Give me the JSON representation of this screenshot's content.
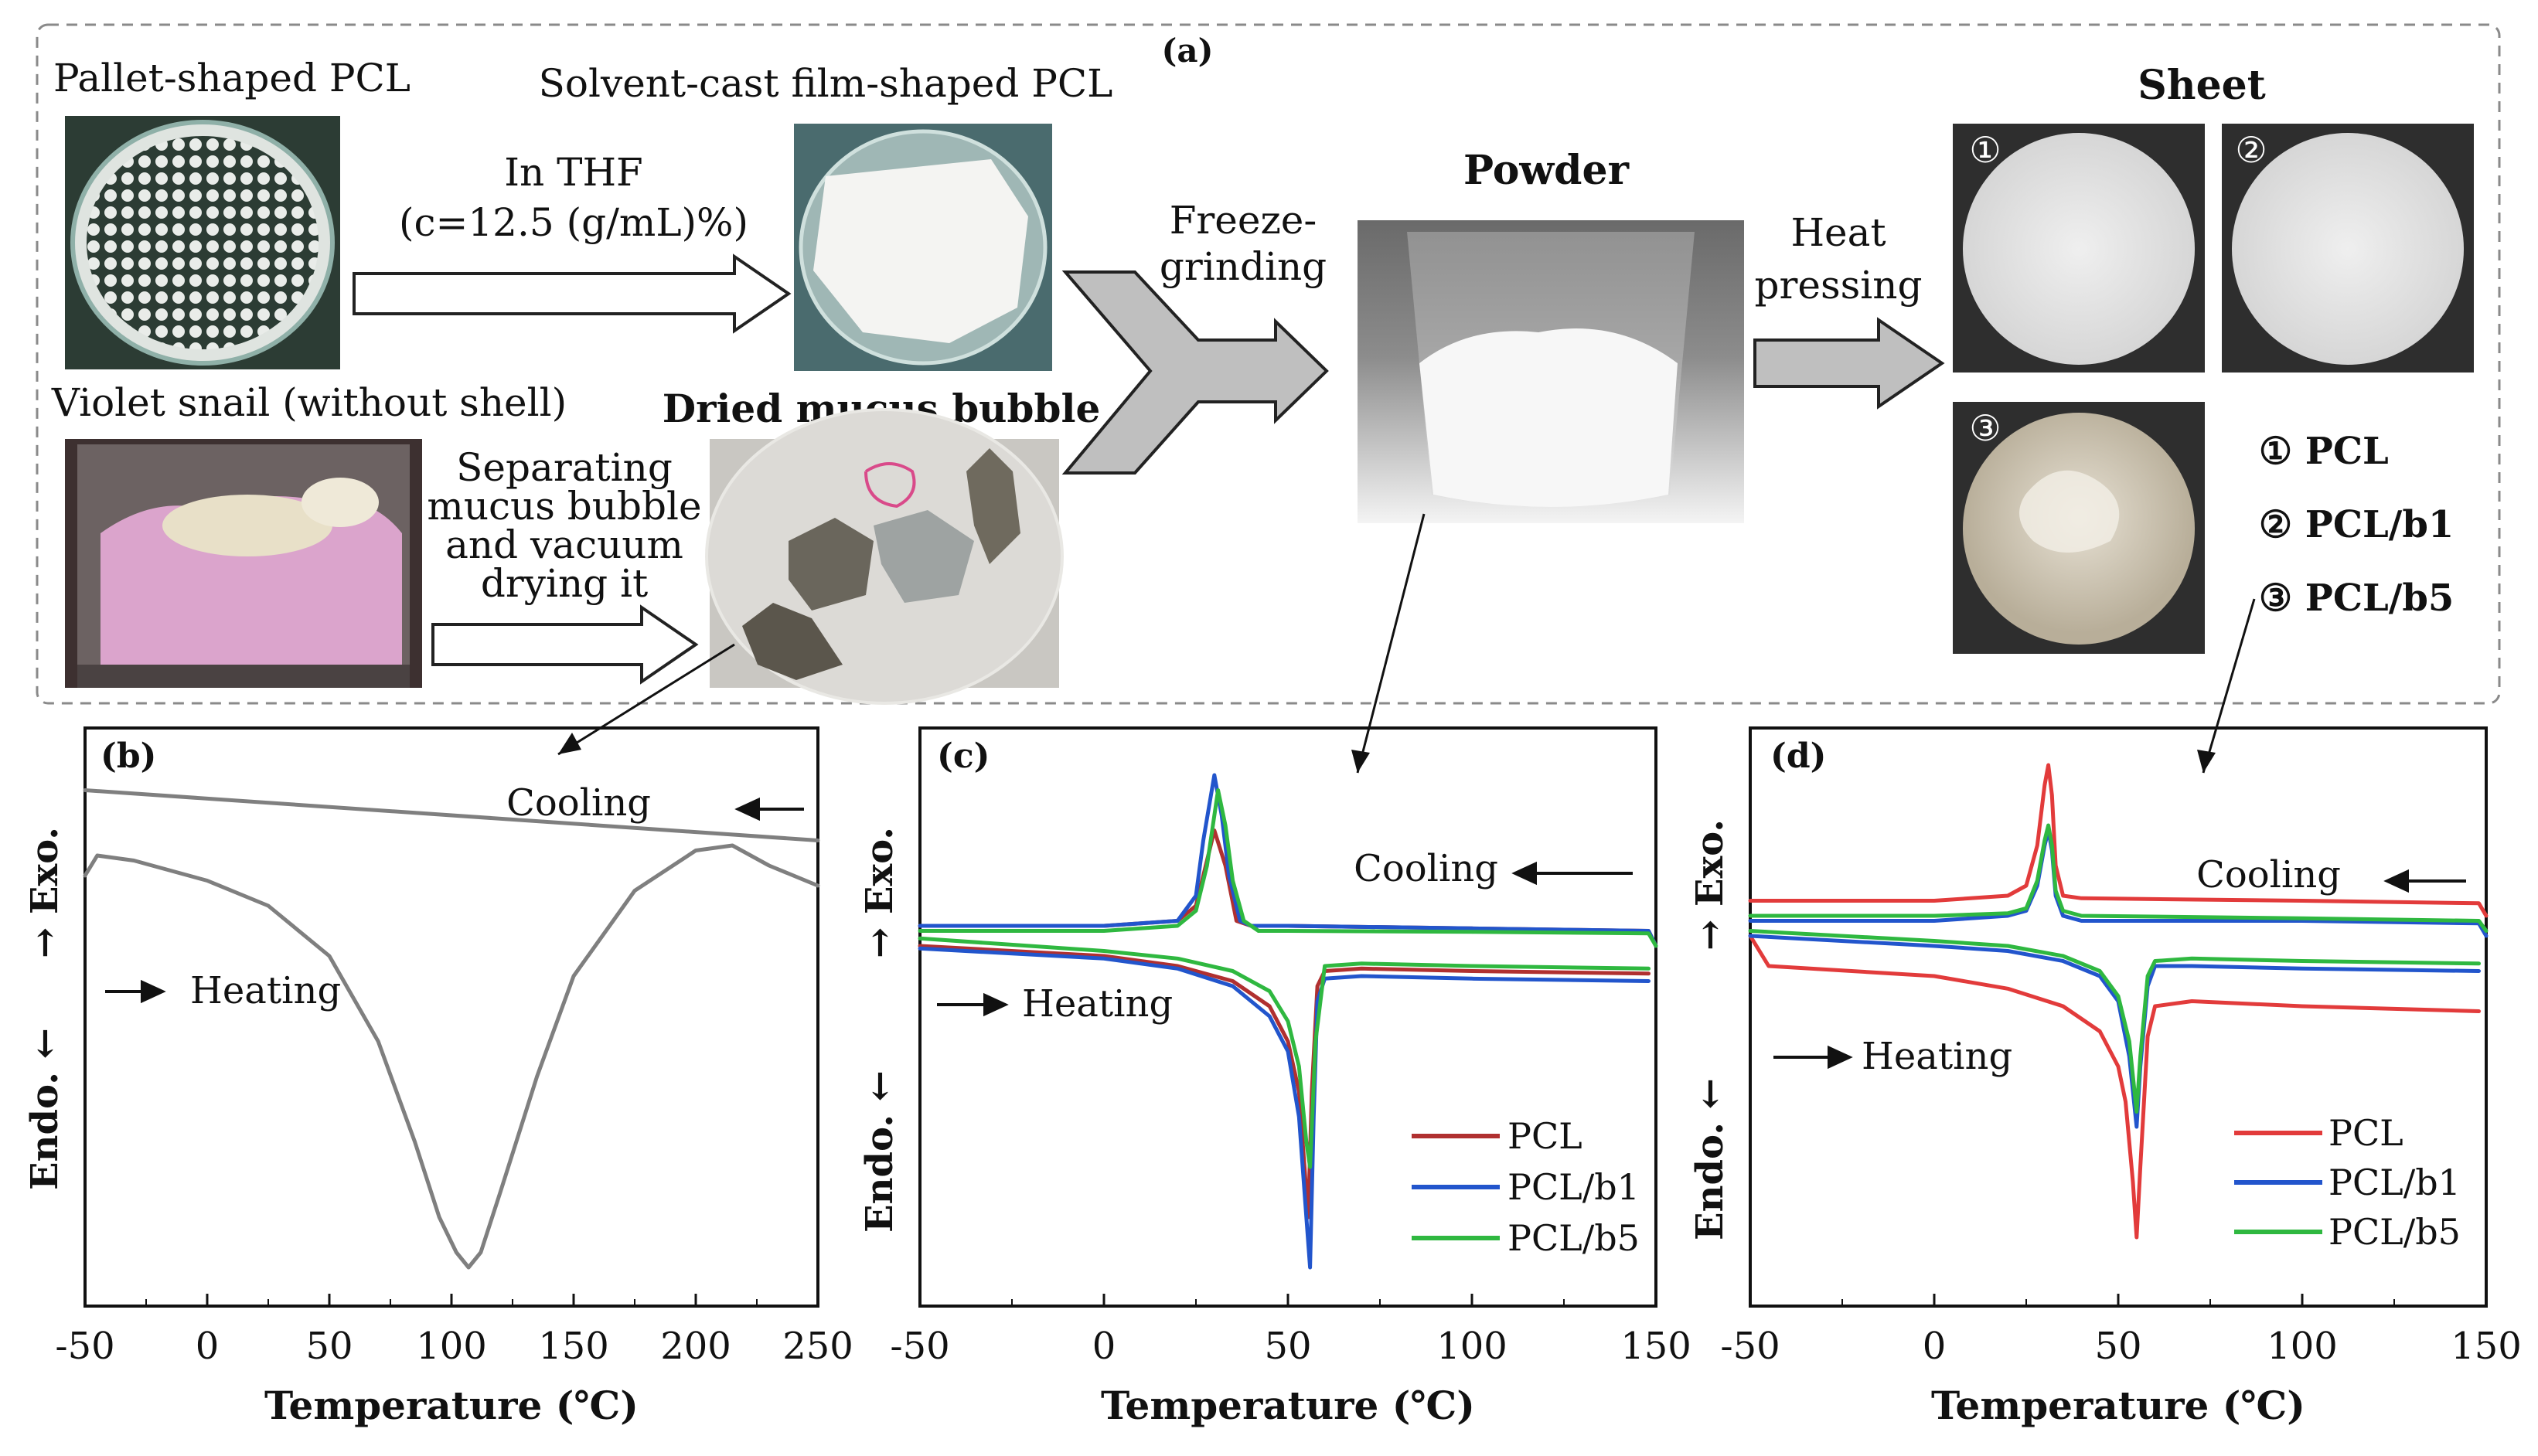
{
  "panel_a": {
    "label": "(a)",
    "pellet_label": "Pallet-shaped PCL",
    "film_label": "Solvent-cast film-shaped PCL",
    "thf_line1": "In THF",
    "thf_line2": "(c=12.5 (g/mL)%)",
    "snail_label": "Violet snail (without shell)",
    "mucus_label": "Dried mucus bubble",
    "separating_line1": "Separating",
    "separating_line2": "mucus bubble",
    "separating_line3": "and vacuum",
    "separating_line4": "drying it",
    "freeze_line1": "Freeze-",
    "freeze_line2": "grinding",
    "powder_label": "Powder",
    "heat_line1": "Heat",
    "heat_line2": "pressing",
    "sheet_label": "Sheet",
    "sheet_badges": [
      "①",
      "②",
      "③"
    ],
    "legend_items": [
      "① PCL",
      "② PCL/b1",
      "③ PCL/b5"
    ],
    "colors": {
      "dashed_border": "#8a8a8a",
      "arrow_fill": "#bfbfbf",
      "photo_pellet": "#2c3c34",
      "photo_film": "#4a6b6e",
      "photo_snail": "#3d3030",
      "photo_mucus": "#c9c7c2",
      "photo_powder": "#555555",
      "photo_sheet": "#2e2e2e"
    }
  },
  "chart_data": [
    {
      "panel": "(b)",
      "type": "line",
      "xlabel": "Temperature (℃)",
      "ylabel_top": "→ Exo.",
      "ylabel_bottom": "Endo. ←",
      "xlim": [
        -50,
        250
      ],
      "x_ticks": [
        "-50",
        "0",
        "50",
        "100",
        "150",
        "200",
        "250"
      ],
      "annotations": {
        "cooling": "Cooling",
        "heating": "Heating"
      },
      "series": [
        {
          "name": "Cooling",
          "color": "#7f7f7f",
          "x": [
            -50,
            250
          ],
          "y": [
            0.95,
            0.85
          ]
        },
        {
          "name": "Heating",
          "color": "#7f7f7f",
          "x": [
            -50,
            -45,
            -30,
            0,
            25,
            50,
            70,
            85,
            95,
            102,
            107,
            112,
            120,
            135,
            150,
            175,
            200,
            215,
            230,
            250
          ],
          "y": [
            0.78,
            0.82,
            0.81,
            0.77,
            0.72,
            0.62,
            0.45,
            0.25,
            0.1,
            0.03,
            0.0,
            0.03,
            0.15,
            0.38,
            0.58,
            0.75,
            0.83,
            0.84,
            0.8,
            0.76
          ]
        }
      ]
    },
    {
      "panel": "(c)",
      "type": "line",
      "xlabel": "Temperature (℃)",
      "ylabel_top": "→ Exo.",
      "ylabel_bottom": "Endo. ←",
      "xlim": [
        -50,
        150
      ],
      "x_ticks": [
        "-50",
        "0",
        "50",
        "100",
        "150"
      ],
      "annotations": {
        "cooling": "Cooling",
        "heating": "Heating"
      },
      "legend": [
        "PCL",
        "PCL/b1",
        "PCL/b5"
      ],
      "series": [
        {
          "name": "PCL cooling",
          "color": "#b03030",
          "x": [
            -50,
            0,
            20,
            25,
            28,
            30,
            33,
            36,
            40,
            50,
            100,
            148,
            150
          ],
          "y": [
            0.68,
            0.68,
            0.69,
            0.72,
            0.81,
            0.87,
            0.8,
            0.69,
            0.68,
            0.68,
            0.675,
            0.67,
            0.64
          ]
        },
        {
          "name": "PCL/b1 cooling",
          "color": "#2255cc",
          "x": [
            -50,
            0,
            20,
            25,
            27,
            30,
            32,
            34,
            37,
            40,
            50,
            100,
            148,
            150
          ],
          "y": [
            0.68,
            0.68,
            0.69,
            0.74,
            0.85,
            0.98,
            0.9,
            0.78,
            0.69,
            0.68,
            0.68,
            0.675,
            0.67,
            0.64
          ]
        },
        {
          "name": "PCL/b5 cooling",
          "color": "#2fb840",
          "x": [
            -50,
            0,
            20,
            25,
            28,
            31,
            33,
            35,
            38,
            42,
            50,
            100,
            148,
            150
          ],
          "y": [
            0.67,
            0.67,
            0.68,
            0.71,
            0.8,
            0.95,
            0.88,
            0.77,
            0.69,
            0.67,
            0.67,
            0.668,
            0.665,
            0.64
          ]
        },
        {
          "name": "PCL heating",
          "color": "#b03030",
          "x": [
            -50,
            0,
            20,
            35,
            45,
            50,
            53,
            54.5,
            55.5,
            56.5,
            58,
            60,
            70,
            100,
            148
          ],
          "y": [
            0.64,
            0.62,
            0.6,
            0.57,
            0.52,
            0.45,
            0.35,
            0.2,
            0.1,
            0.35,
            0.56,
            0.59,
            0.595,
            0.59,
            0.585
          ]
        },
        {
          "name": "PCL/b1 heating",
          "color": "#2255cc",
          "x": [
            -50,
            0,
            20,
            35,
            45,
            50,
            53,
            55,
            56,
            57,
            58,
            60,
            70,
            100,
            148
          ],
          "y": [
            0.635,
            0.615,
            0.595,
            0.56,
            0.5,
            0.43,
            0.3,
            0.1,
            0.0,
            0.3,
            0.53,
            0.575,
            0.58,
            0.575,
            0.57
          ]
        },
        {
          "name": "PCL/b5 heating",
          "color": "#2fb840",
          "x": [
            -50,
            0,
            20,
            35,
            45,
            50,
            53,
            55,
            56,
            57.5,
            60,
            70,
            100,
            148
          ],
          "y": [
            0.655,
            0.63,
            0.615,
            0.59,
            0.55,
            0.49,
            0.4,
            0.25,
            0.2,
            0.45,
            0.6,
            0.605,
            0.6,
            0.595
          ]
        }
      ]
    },
    {
      "panel": "(d)",
      "type": "line",
      "xlabel": "Temperature (℃)",
      "ylabel_top": "→ Exo.",
      "ylabel_bottom": "Endo. ←",
      "xlim": [
        -50,
        150
      ],
      "x_ticks": [
        "-50",
        "0",
        "50",
        "100",
        "150"
      ],
      "annotations": {
        "cooling": "Cooling",
        "heating": "Heating"
      },
      "legend": [
        "PCL",
        "PCL/b1",
        "PCL/b5"
      ],
      "series": [
        {
          "name": "PCL cooling",
          "color": "#e23b3b",
          "x": [
            -50,
            0,
            20,
            25,
            28,
            30,
            31,
            32,
            33,
            35,
            40,
            100,
            148,
            150
          ],
          "y": [
            0.73,
            0.73,
            0.74,
            0.76,
            0.84,
            0.96,
            1.0,
            0.94,
            0.8,
            0.74,
            0.735,
            0.73,
            0.725,
            0.7
          ]
        },
        {
          "name": "PCL/b1 cooling",
          "color": "#2255cc",
          "x": [
            -50,
            0,
            20,
            25,
            28,
            30,
            31,
            32,
            33,
            35,
            40,
            100,
            148,
            150
          ],
          "y": [
            0.69,
            0.69,
            0.7,
            0.71,
            0.76,
            0.84,
            0.87,
            0.83,
            0.74,
            0.7,
            0.69,
            0.69,
            0.685,
            0.66
          ]
        },
        {
          "name": "PCL/b5 cooling",
          "color": "#2fb840",
          "x": [
            -50,
            0,
            20,
            25,
            28,
            30,
            31,
            32,
            33,
            35,
            40,
            100,
            148,
            150
          ],
          "y": [
            0.7,
            0.7,
            0.705,
            0.715,
            0.77,
            0.85,
            0.88,
            0.84,
            0.75,
            0.71,
            0.7,
            0.695,
            0.69,
            0.67
          ]
        },
        {
          "name": "PCL heating",
          "color": "#e23b3b",
          "x": [
            -50,
            -45,
            0,
            20,
            35,
            45,
            50,
            52,
            54,
            55,
            56,
            58,
            60,
            70,
            100,
            148
          ],
          "y": [
            0.66,
            0.6,
            0.58,
            0.555,
            0.52,
            0.47,
            0.4,
            0.33,
            0.17,
            0.06,
            0.2,
            0.46,
            0.52,
            0.53,
            0.52,
            0.51
          ]
        },
        {
          "name": "PCL/b1 heating",
          "color": "#2255cc",
          "x": [
            -50,
            0,
            20,
            35,
            45,
            50,
            53,
            55,
            56,
            58,
            60,
            70,
            100,
            148
          ],
          "y": [
            0.66,
            0.64,
            0.63,
            0.61,
            0.58,
            0.53,
            0.42,
            0.28,
            0.4,
            0.56,
            0.6,
            0.6,
            0.595,
            0.59
          ]
        },
        {
          "name": "PCL/b5 heating",
          "color": "#2fb840",
          "x": [
            -50,
            0,
            20,
            35,
            45,
            50,
            53,
            55,
            56,
            58,
            60,
            70,
            100,
            148
          ],
          "y": [
            0.67,
            0.65,
            0.64,
            0.62,
            0.59,
            0.54,
            0.45,
            0.31,
            0.42,
            0.58,
            0.61,
            0.615,
            0.61,
            0.605
          ]
        }
      ]
    }
  ]
}
